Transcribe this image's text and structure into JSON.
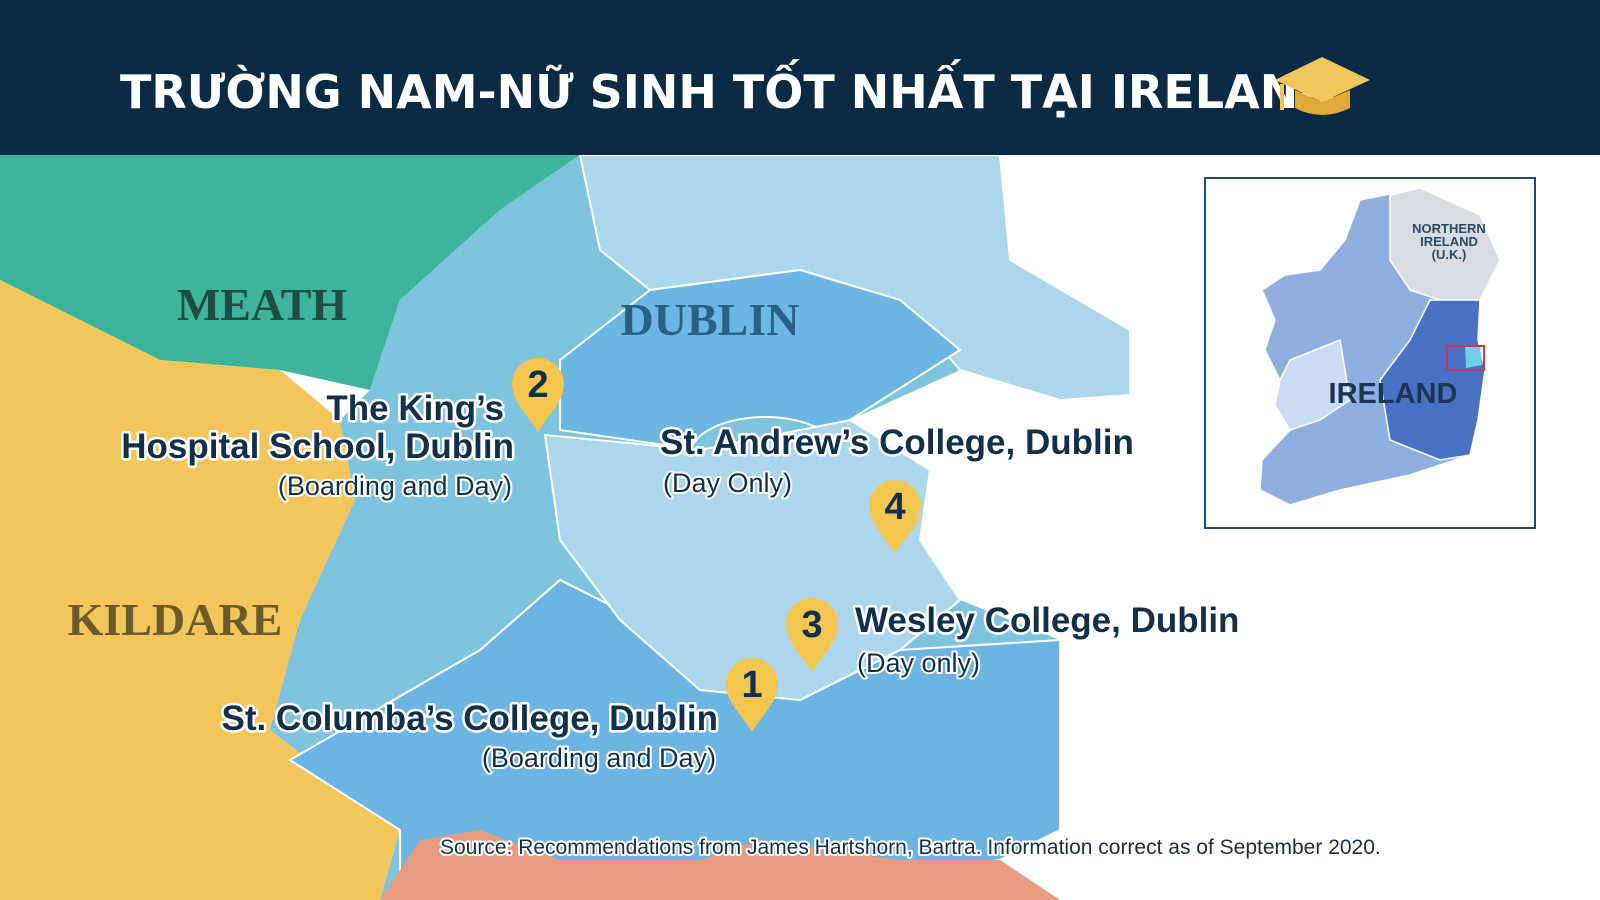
{
  "header": {
    "title": "TRƯỜNG NAM-NỮ SINH TỐT NHẤT TẠI IRELAND"
  },
  "map": {
    "regions": [
      "MEATH",
      "DUBLIN",
      "KILDARE"
    ],
    "schools": [
      {
        "number": 2,
        "name_lines": [
          "The King’s",
          "Hospital School, Dublin"
        ],
        "note": "(Boarding and Day)"
      },
      {
        "number": 4,
        "name_lines": [
          "St. Andrew’s College, Dublin"
        ],
        "note": "(Day Only)"
      },
      {
        "number": 3,
        "name_lines": [
          "Wesley College, Dublin"
        ],
        "note": "(Day only)"
      },
      {
        "number": 1,
        "name_lines": [
          "St. Columba’s College, Dublin"
        ],
        "note": "(Boarding and Day)"
      }
    ],
    "inset": {
      "northern_lines": [
        "NORTHERN",
        "IRELAND",
        "(U.K.)"
      ],
      "country": "IRELAND"
    },
    "source": "Source: Recommendations from James Hartshorn, Bartra. Information correct as of September 2020."
  }
}
